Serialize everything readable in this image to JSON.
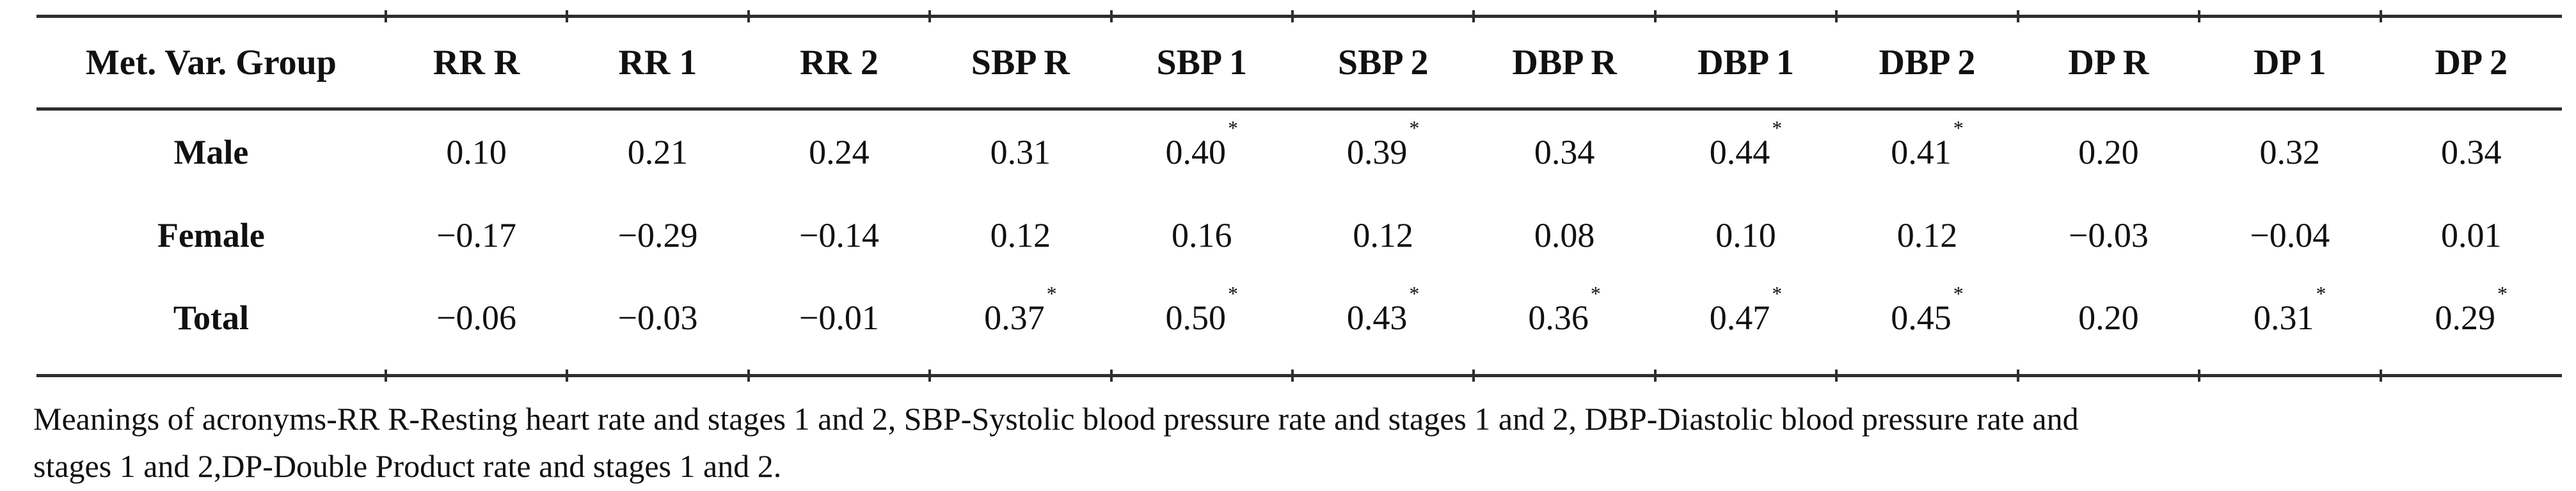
{
  "table": {
    "header": [
      "Met. Var. Group",
      "RR R",
      "RR 1",
      "RR 2",
      "SBP R",
      "SBP 1",
      "SBP 2",
      "DBP R",
      "DBP 1",
      "DBP 2",
      "DP R",
      "DP 1",
      "DP 2"
    ],
    "rows": [
      {
        "label": "Male",
        "values": [
          "0.10",
          "0.21",
          "0.24",
          "0.31",
          "0.40*",
          "0.39*",
          "0.34",
          "0.44*",
          "0.41*",
          "0.20",
          "0.32",
          "0.34"
        ]
      },
      {
        "label": "Female",
        "values": [
          "−0.17",
          "−0.29",
          "−0.14",
          "0.12",
          "0.16",
          "0.12",
          "0.08",
          "0.10",
          "0.12",
          "−0.03",
          "−0.04",
          "0.01"
        ]
      },
      {
        "label": "Total",
        "values": [
          "−0.06",
          "−0.03",
          "−0.01",
          "0.37*",
          "0.50*",
          "0.43*",
          "0.36*",
          "0.47*",
          "0.45*",
          "0.20",
          "0.31*",
          "0.29*"
        ]
      }
    ],
    "significance_marker": "*"
  },
  "footnote": {
    "lines": [
      "Meanings of acronyms-RR R-Resting heart rate and stages 1 and 2, SBP-Systolic blood pressure rate and stages 1 and 2, DBP-Diastolic blood pressure rate and",
      "stages 1 and 2,DP-Double Product rate and stages 1 and 2."
    ]
  },
  "colors": {
    "text": "#111111",
    "rule": "#2e2e2e",
    "background": "#ffffff"
  }
}
